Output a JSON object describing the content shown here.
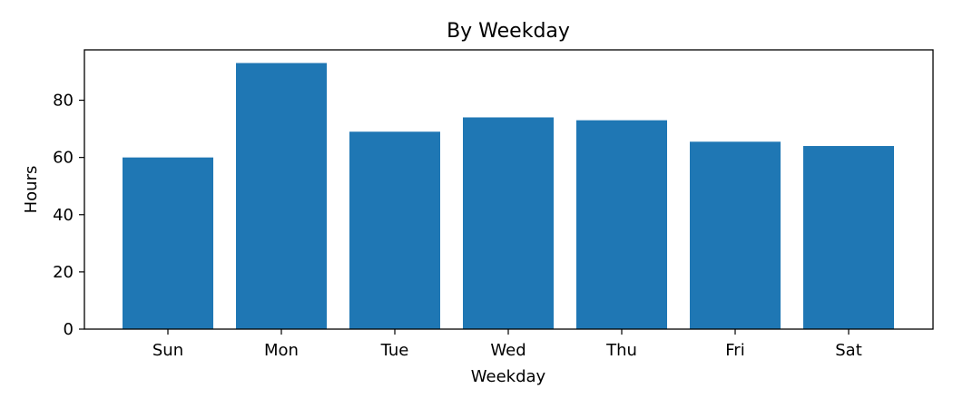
{
  "chart_data": {
    "type": "bar",
    "title": "By Weekday",
    "xlabel": "Weekday",
    "ylabel": "Hours",
    "categories": [
      "Sun",
      "Mon",
      "Tue",
      "Wed",
      "Thu",
      "Fri",
      "Sat"
    ],
    "values": [
      60,
      93,
      69,
      74,
      73,
      65.5,
      64
    ],
    "ylim": [
      0,
      97.6
    ],
    "yticks": [
      0,
      20,
      40,
      60,
      80
    ],
    "grid": false,
    "bar_color": "#1f77b4"
  }
}
